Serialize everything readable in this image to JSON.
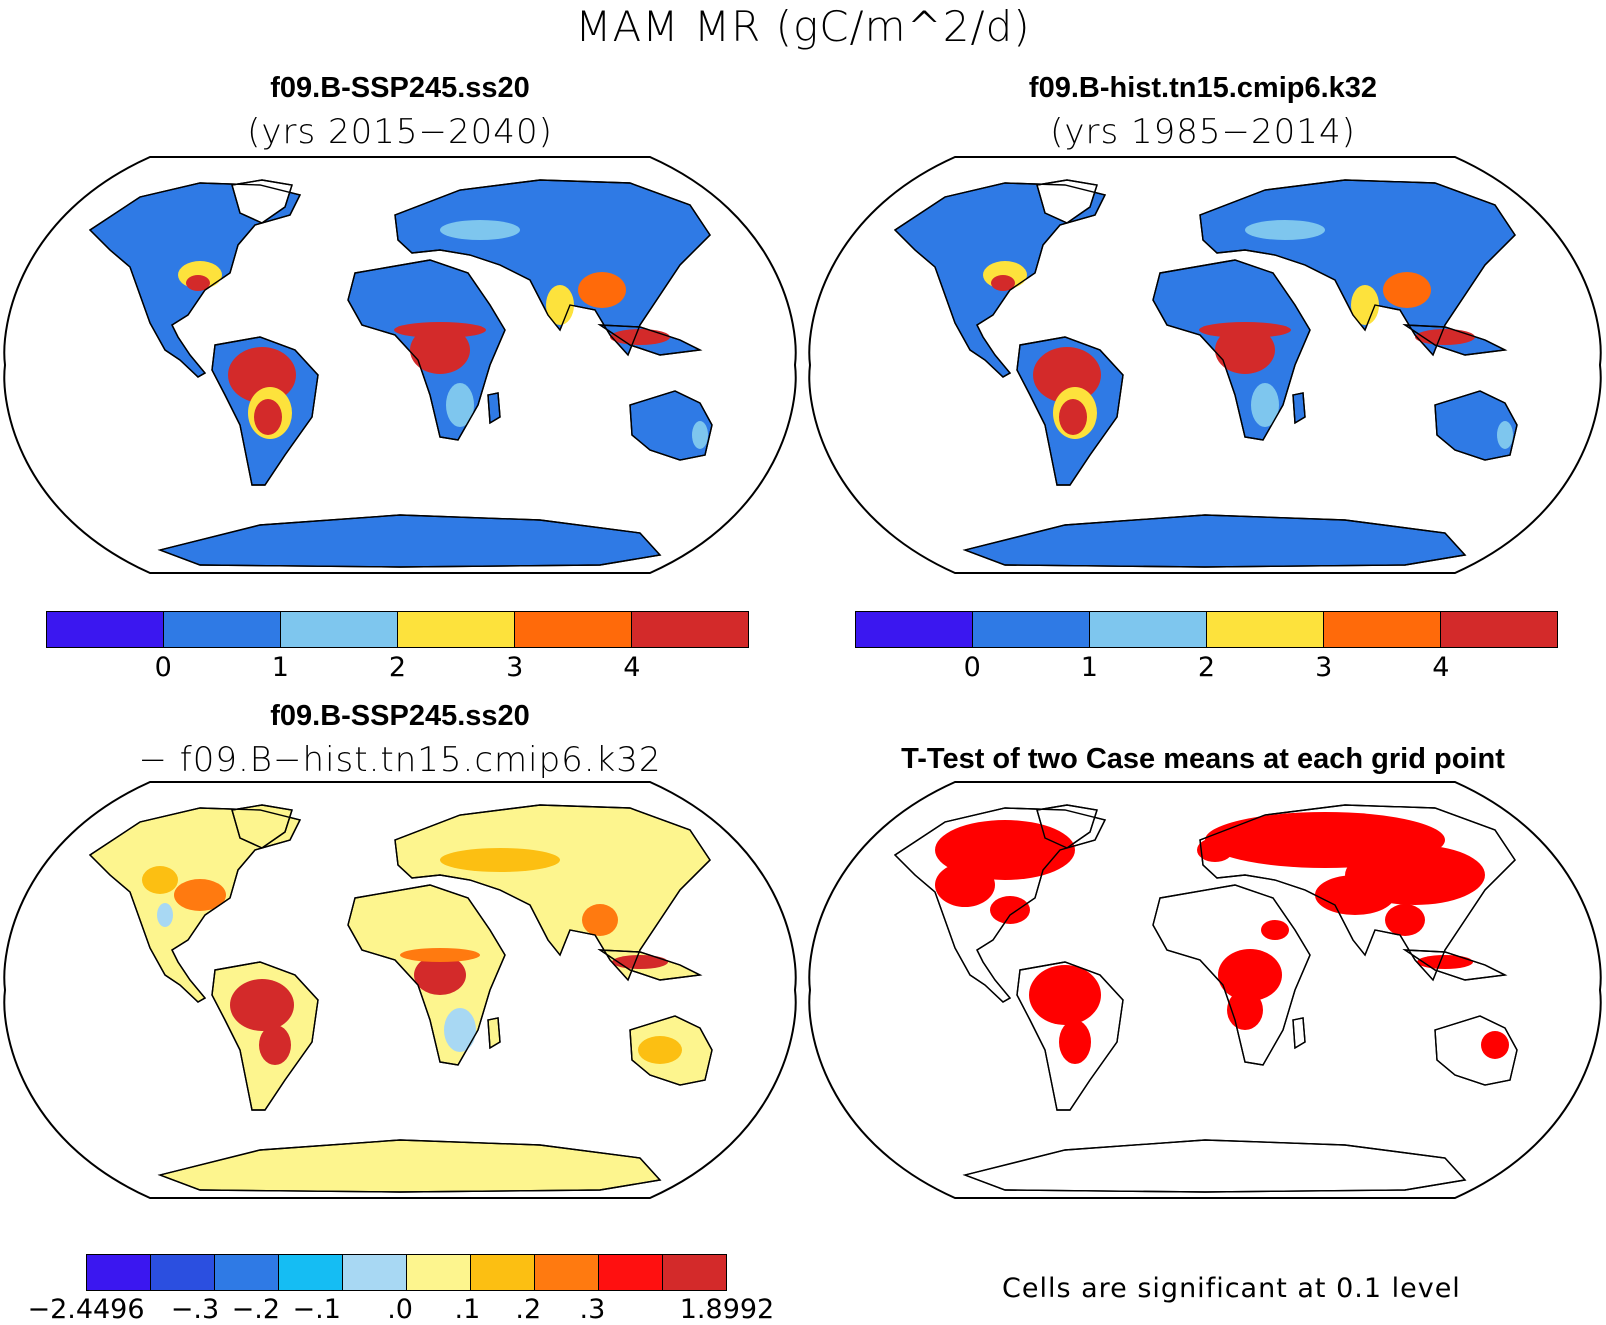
{
  "figure_title": "MAM MR (gC/m^2/d)",
  "panels": {
    "top_left": {
      "title": "f09.B-SSP245.ss20",
      "subtitle": "(yrs 2015−2040)"
    },
    "top_right": {
      "title": "f09.B-hist.tn15.cmip6.k32",
      "subtitle": "(yrs 1985−2014)"
    },
    "bottom_left": {
      "title": "f09.B-SSP245.ss20",
      "subtitle": "− f09.B−hist.tn15.cmip6.k32"
    },
    "bottom_right": {
      "title": "T-Test of two Case means at each grid point",
      "note": "Cells are significant at 0.1 level"
    }
  },
  "colorbar_abs": {
    "colors": [
      "#3b17f0",
      "#2f7ae5",
      "#7ec6ee",
      "#fde23c",
      "#ff6a0a",
      "#d32a2a"
    ],
    "ticks": [
      "0",
      "1",
      "2",
      "3",
      "4"
    ]
  },
  "colorbar_diff": {
    "colors": [
      "#3b17f0",
      "#2b4fe0",
      "#2f7ae5",
      "#15bdf3",
      "#a8d8f3",
      "#fdf58e",
      "#fcbf12",
      "#ff7a10",
      "#ff1010",
      "#d32a2a"
    ],
    "ticks": [
      "−2.4496",
      "−.3",
      "−.2",
      "−.1",
      ".0",
      ".1",
      ".2",
      ".3",
      "1.8992"
    ]
  },
  "map_colors": {
    "abs_low": "#2f7ae5",
    "abs_light": "#7ec6ee",
    "abs_yellow": "#fde23c",
    "abs_orange": "#ff6a0a",
    "abs_high": "#d32a2a",
    "diff_base": "#fdf58e",
    "diff_mid": "#fcbf12",
    "diff_orange": "#ff7a10",
    "diff_high": "#d32a2a",
    "diff_neg": "#a8d8f3",
    "sig": "#ff0000"
  }
}
